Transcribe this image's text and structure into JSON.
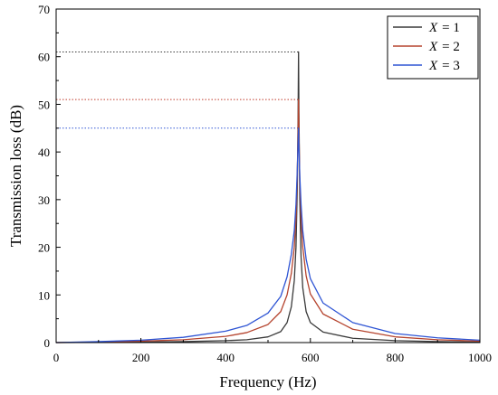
{
  "chart_data": {
    "type": "line",
    "xlabel": "Frequency (Hz)",
    "ylabel": "Transmission loss (dB)",
    "xlim": [
      0,
      1000
    ],
    "ylim": [
      0,
      70
    ],
    "x_ticks": [
      0,
      200,
      400,
      600,
      800,
      1000
    ],
    "y_ticks": [
      0,
      10,
      20,
      30,
      40,
      50,
      60,
      70
    ],
    "x_tick_labels": [
      "0",
      "200",
      "400",
      "600",
      "800",
      "1000"
    ],
    "y_tick_labels": [
      "0",
      "10",
      "20",
      "30",
      "40",
      "50",
      "60",
      "70"
    ],
    "legend_position": "top-right",
    "grid": false,
    "series": [
      {
        "name": "X = 1",
        "legend_var": "X",
        "legend_value": "= 1",
        "color": "#3a3a3a",
        "x": [
          0,
          100,
          200,
          300,
          400,
          450,
          500,
          530,
          545,
          555,
          562,
          566,
          569,
          571,
          572,
          573,
          575,
          578,
          582,
          590,
          600,
          630,
          700,
          800,
          900,
          1000
        ],
        "y": [
          0,
          0.05,
          0.1,
          0.2,
          0.4,
          0.6,
          1.2,
          2.3,
          4.2,
          7.5,
          13,
          20,
          32,
          48,
          61,
          48,
          30,
          18,
          11.5,
          6.5,
          4.2,
          2.2,
          0.9,
          0.4,
          0.2,
          0.1
        ]
      },
      {
        "name": "X = 2",
        "legend_var": "X",
        "legend_value": "= 2",
        "color": "#b5442e",
        "x": [
          0,
          100,
          200,
          300,
          400,
          450,
          500,
          530,
          545,
          555,
          562,
          566,
          569,
          571,
          572,
          573,
          575,
          578,
          582,
          590,
          600,
          630,
          700,
          800,
          900,
          1000
        ],
        "y": [
          0,
          0.1,
          0.3,
          0.6,
          1.3,
          2.1,
          3.8,
          6.5,
          10,
          14.5,
          20,
          26,
          35,
          45,
          51,
          44,
          34,
          26,
          20,
          14,
          10.2,
          6,
          2.8,
          1.2,
          0.6,
          0.3
        ]
      },
      {
        "name": "X = 3",
        "legend_var": "X",
        "legend_value": "= 3",
        "color": "#2f55d4",
        "x": [
          0,
          100,
          200,
          300,
          400,
          450,
          500,
          530,
          545,
          555,
          562,
          566,
          569,
          571,
          572,
          573,
          575,
          578,
          582,
          590,
          600,
          630,
          700,
          800,
          900,
          1000
        ],
        "y": [
          0,
          0.2,
          0.5,
          1.1,
          2.4,
          3.6,
          6.2,
          9.7,
          13.8,
          18.5,
          23.5,
          29,
          36,
          42,
          45,
          41,
          35,
          29,
          23.5,
          17.5,
          13.4,
          8.3,
          4.2,
          1.9,
          1,
          0.5
        ]
      }
    ],
    "reference_lines": [
      {
        "y": 61,
        "x_end": 572,
        "color": "#3a3a3a"
      },
      {
        "y": 51,
        "x_end": 572,
        "color": "#c0392b"
      },
      {
        "y": 45,
        "x_end": 572,
        "color": "#2f55d4"
      }
    ]
  }
}
